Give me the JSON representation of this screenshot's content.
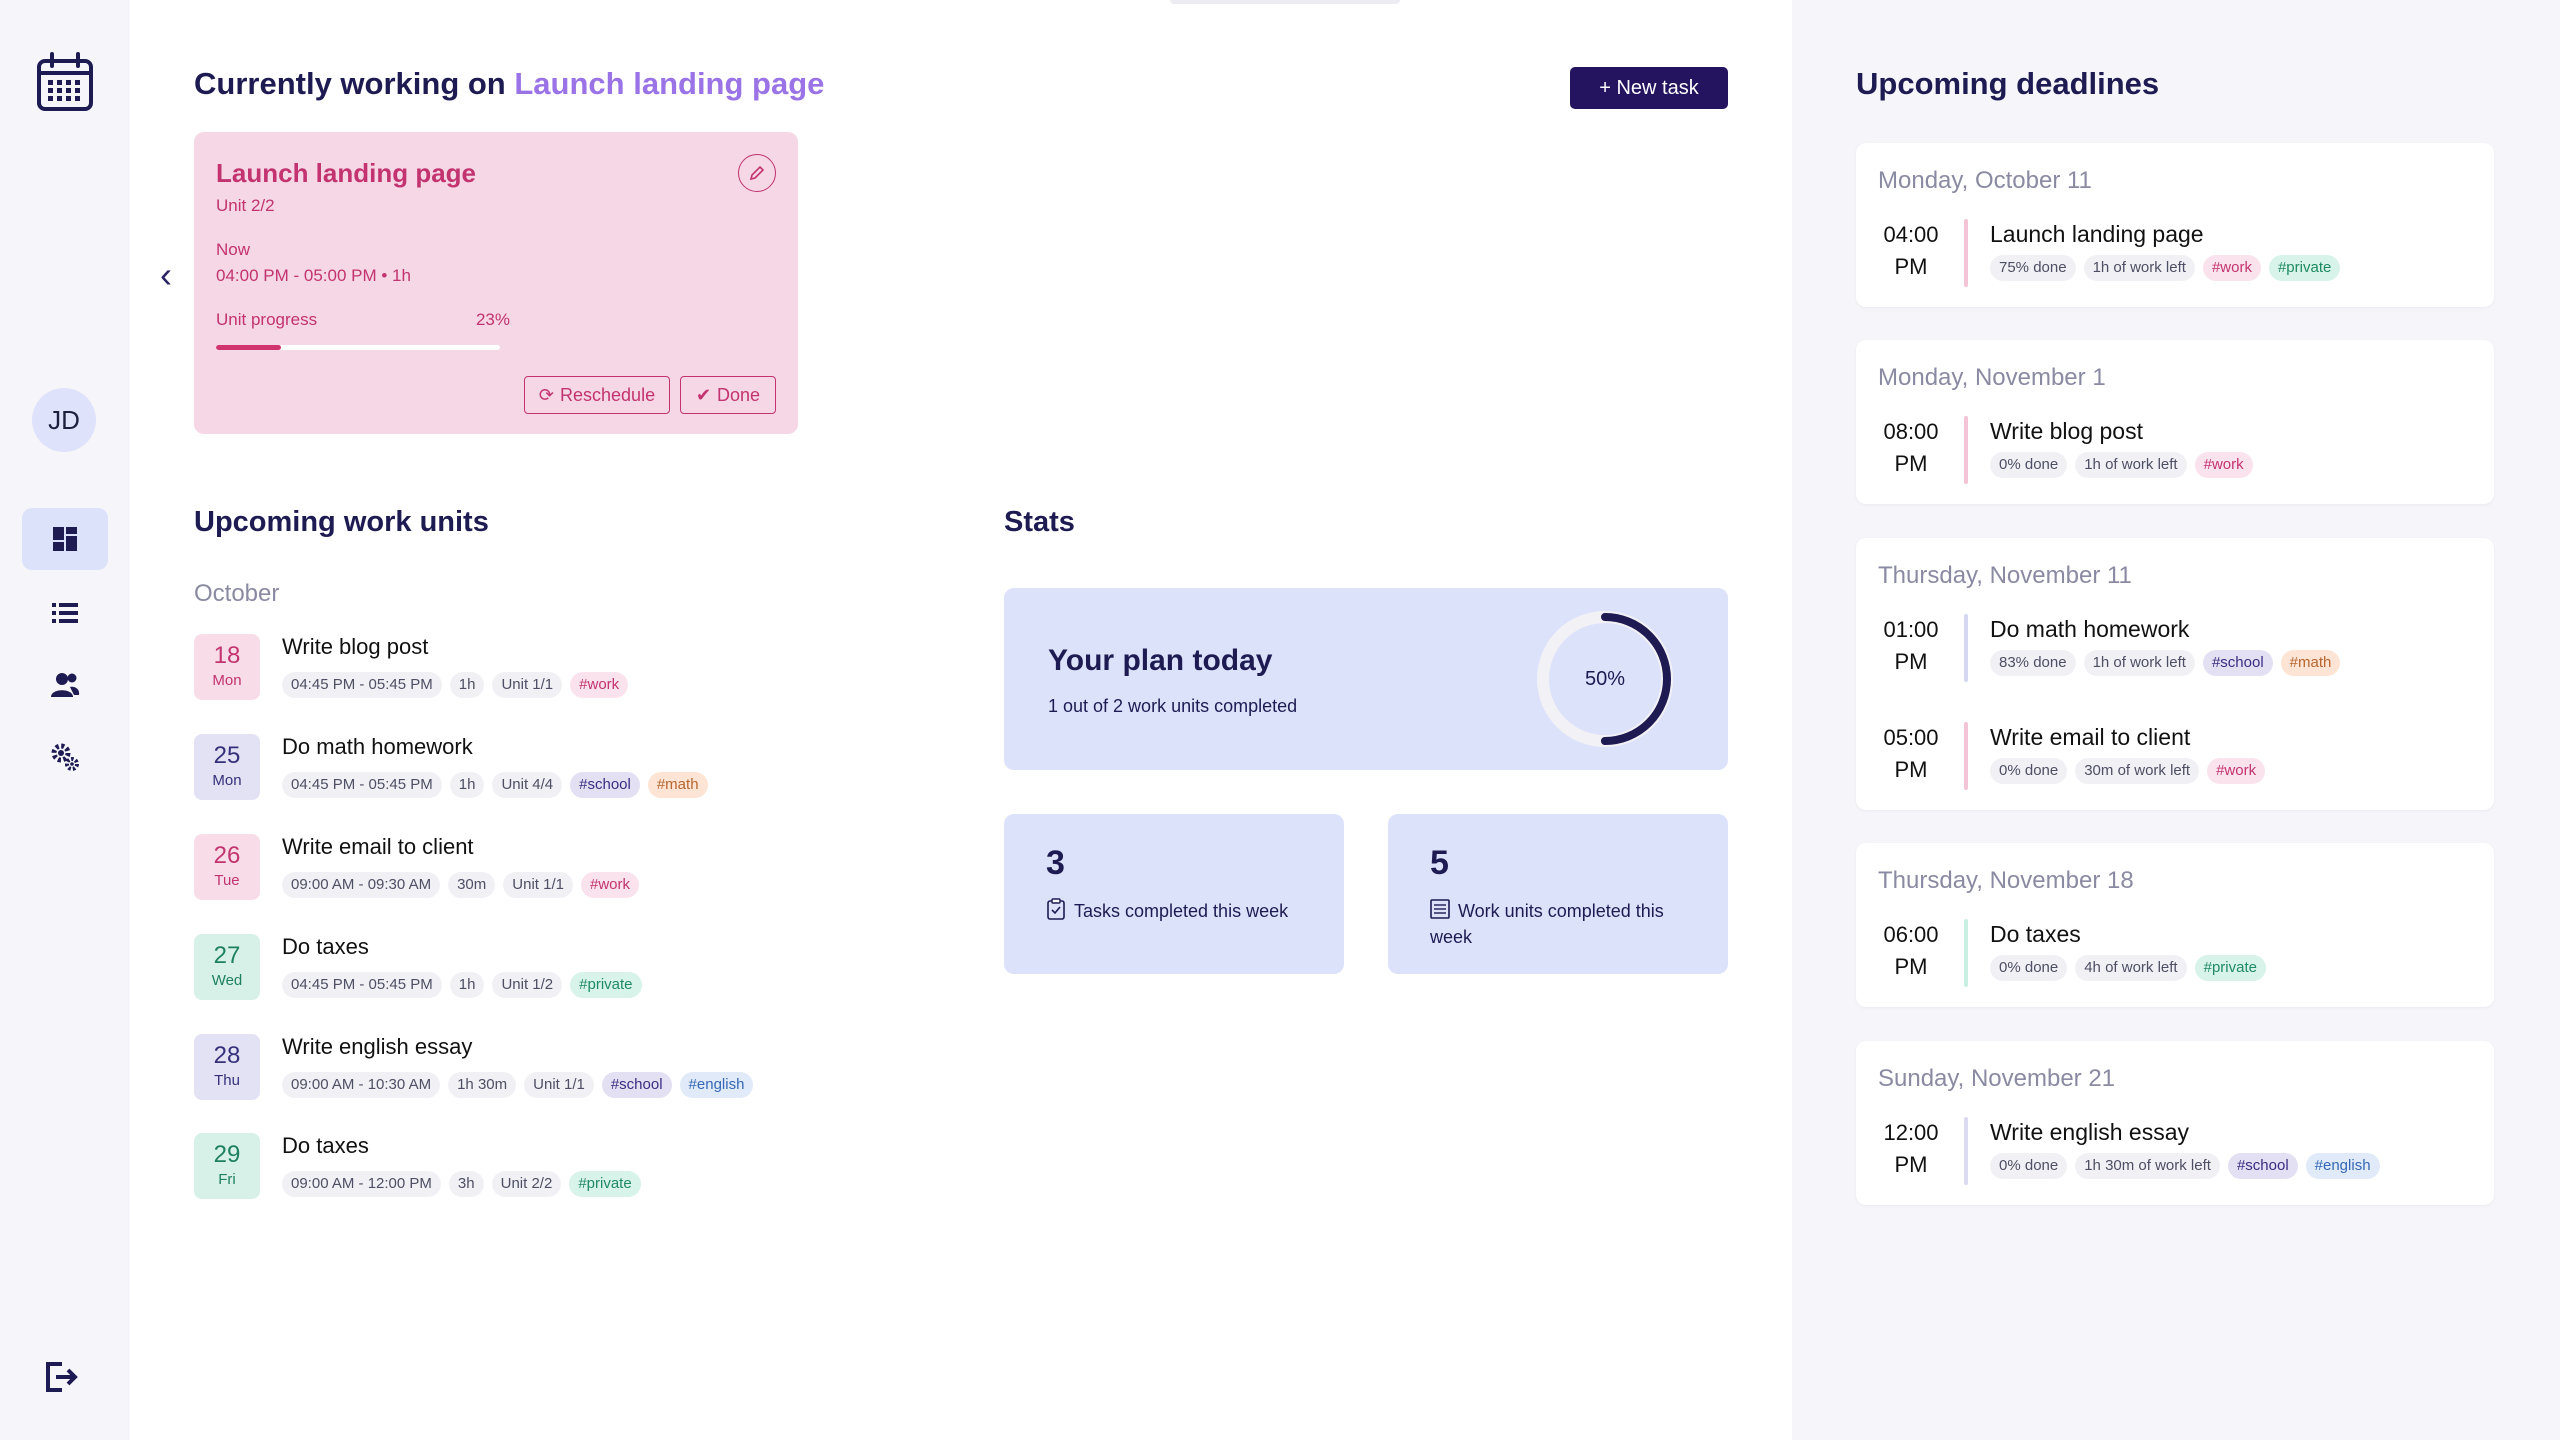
{
  "sidebar": {
    "avatar_initials": "JD",
    "items": [
      {
        "name": "dashboard",
        "icon": "dashboard-grid-icon",
        "active": true
      },
      {
        "name": "list",
        "icon": "list-icon",
        "active": false
      },
      {
        "name": "team",
        "icon": "users-icon",
        "active": false
      },
      {
        "name": "settings",
        "icon": "gears-icon",
        "active": false
      }
    ],
    "logout_icon": "logout-icon"
  },
  "header": {
    "prefix": "Currently working on",
    "current_task": "Launch landing page",
    "new_task_label": "+ New task"
  },
  "current_card": {
    "title": "Launch landing page",
    "unit": "Unit 2/2",
    "now_label": "Now",
    "time": "04:00 PM - 05:00 PM • 1h",
    "progress_label": "Unit progress",
    "progress_text": "23%",
    "progress_value": 0.23,
    "reschedule_label": "Reschedule",
    "done_label": "Done"
  },
  "work_units": {
    "title": "Upcoming work units",
    "month": "October",
    "items": [
      {
        "day": "18",
        "weekday": "Mon",
        "color": "pink",
        "name": "Write blog post",
        "time": "04:45 PM - 05:45 PM",
        "duration": "1h",
        "unit": "Unit 1/1",
        "tags": [
          {
            "text": "#work",
            "kind": "work"
          }
        ]
      },
      {
        "day": "25",
        "weekday": "Mon",
        "color": "purple",
        "name": "Do math homework",
        "time": "04:45 PM - 05:45 PM",
        "duration": "1h",
        "unit": "Unit 4/4",
        "tags": [
          {
            "text": "#school",
            "kind": "school"
          },
          {
            "text": "#math",
            "kind": "math"
          }
        ]
      },
      {
        "day": "26",
        "weekday": "Tue",
        "color": "pink",
        "name": "Write email to client",
        "time": "09:00 AM - 09:30 AM",
        "duration": "30m",
        "unit": "Unit 1/1",
        "tags": [
          {
            "text": "#work",
            "kind": "work"
          }
        ]
      },
      {
        "day": "27",
        "weekday": "Wed",
        "color": "green",
        "name": "Do taxes",
        "time": "04:45 PM - 05:45 PM",
        "duration": "1h",
        "unit": "Unit 1/2",
        "tags": [
          {
            "text": "#private",
            "kind": "private"
          }
        ]
      },
      {
        "day": "28",
        "weekday": "Thu",
        "color": "purple",
        "name": "Write english essay",
        "time": "09:00 AM - 10:30 AM",
        "duration": "1h 30m",
        "unit": "Unit 1/1",
        "tags": [
          {
            "text": "#school",
            "kind": "school"
          },
          {
            "text": "#english",
            "kind": "english"
          }
        ]
      },
      {
        "day": "29",
        "weekday": "Fri",
        "color": "green",
        "name": "Do taxes",
        "time": "09:00 AM - 12:00 PM",
        "duration": "3h",
        "unit": "Unit 2/2",
        "tags": [
          {
            "text": "#private",
            "kind": "private"
          }
        ]
      }
    ]
  },
  "stats": {
    "title": "Stats",
    "plan_title": "Your plan today",
    "plan_subtitle": "1 out of 2 work units completed",
    "plan_percent_text": "50%",
    "plan_percent_value": 0.5,
    "tasks_completed": "3",
    "tasks_completed_label": "Tasks completed this week",
    "units_completed": "5",
    "units_completed_label": "Work units completed this week"
  },
  "deadlines": {
    "title": "Upcoming deadlines",
    "groups": [
      {
        "date": "Monday, October 11",
        "items": [
          {
            "time": "04:00",
            "ampm": "PM",
            "bar": "pink",
            "name": "Launch landing page",
            "done": "75% done",
            "left": "1h of work left",
            "tags": [
              {
                "text": "#work",
                "kind": "work"
              },
              {
                "text": "#private",
                "kind": "private"
              }
            ]
          }
        ]
      },
      {
        "date": "Monday, November 1",
        "items": [
          {
            "time": "08:00",
            "ampm": "PM",
            "bar": "pink",
            "name": "Write blog post",
            "done": "0% done",
            "left": "1h of work left",
            "tags": [
              {
                "text": "#work",
                "kind": "work"
              }
            ]
          }
        ]
      },
      {
        "date": "Thursday, November 11",
        "items": [
          {
            "time": "01:00",
            "ampm": "PM",
            "bar": "blue",
            "name": "Do math homework",
            "done": "83% done",
            "left": "1h of work left",
            "tags": [
              {
                "text": "#school",
                "kind": "school"
              },
              {
                "text": "#math",
                "kind": "math"
              }
            ]
          },
          {
            "time": "05:00",
            "ampm": "PM",
            "bar": "pink",
            "name": "Write email to client",
            "done": "0% done",
            "left": "30m of work left",
            "tags": [
              {
                "text": "#work",
                "kind": "work"
              }
            ]
          }
        ]
      },
      {
        "date": "Thursday, November 18",
        "items": [
          {
            "time": "06:00",
            "ampm": "PM",
            "bar": "green",
            "name": "Do taxes",
            "done": "0% done",
            "left": "4h of work left",
            "tags": [
              {
                "text": "#private",
                "kind": "private"
              }
            ]
          }
        ]
      },
      {
        "date": "Sunday, November 21",
        "items": [
          {
            "time": "12:00",
            "ampm": "PM",
            "bar": "purple",
            "name": "Write english essay",
            "done": "0% done",
            "left": "1h 30m of work left",
            "tags": [
              {
                "text": "#school",
                "kind": "school"
              },
              {
                "text": "#english",
                "kind": "english"
              }
            ]
          }
        ]
      }
    ]
  },
  "colors": {
    "accent": "#9a73e6",
    "primary": "#24135e",
    "pink": "#c2336f",
    "stat_bg": "#dde2fb"
  }
}
